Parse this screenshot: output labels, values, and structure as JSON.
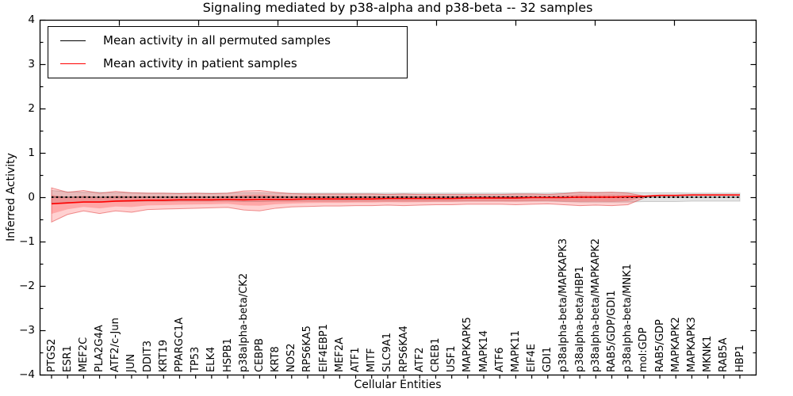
{
  "figure": {
    "title": "Signaling mediated by p38-alpha and p38-beta -- 32 samples",
    "xlabel": "Cellular Entities",
    "ylabel": "Inferred Activity"
  },
  "legend": {
    "entries": [
      {
        "label": "Mean activity in all permuted samples",
        "color": "#000000"
      },
      {
        "label": "Mean activity in patient samples",
        "color": "#ff0000"
      }
    ]
  },
  "chart_data": {
    "type": "line",
    "title": "Signaling mediated by p38-alpha and p38-beta -- 32 samples",
    "xlabel": "Cellular Entities",
    "ylabel": "Inferred Activity",
    "ylim": [
      -4,
      4
    ],
    "grid": false,
    "legend_position": "upper left",
    "x_tick_label_rotation": 90,
    "y_tick_values": [
      4,
      3,
      2,
      1,
      0,
      -1,
      -2,
      -3,
      -4
    ],
    "y_tick_labels": [
      "4",
      "3",
      "2",
      "1",
      "0",
      "−1",
      "−2",
      "−3",
      "−4"
    ],
    "categories": [
      "PTGS2",
      "ESR1",
      "MEF2C",
      "PLA2G4A",
      "ATF2/c-Jun",
      "JUN",
      "DDIT3",
      "KRT19",
      "PPARGC1A",
      "TP53",
      "ELK4",
      "HSPB1",
      "p38alpha-beta/CK2",
      "CEBPB",
      "KRT8",
      "NOS2",
      "RPS6KA5",
      "EIF4EBP1",
      "MEF2A",
      "ATF1",
      "MITF",
      "SLC9A1",
      "RPS6KA4",
      "ATF2",
      "CREB1",
      "USF1",
      "MAPKAPK5",
      "MAPK14",
      "ATF6",
      "MAPK11",
      "EIF4E",
      "GDI1",
      "p38alpha-beta/MAPKAPK3",
      "p38alpha-beta/HBP1",
      "p38alpha-beta/MAPKAPK2",
      "RAB5/GDP/GDI1",
      "p38alpha-beta/MNK1",
      "mol:GDP",
      "RAB5/GDP",
      "MAPKAPK2",
      "MAPKAPK3",
      "MKNK1",
      "RAB5A",
      "HBP1"
    ],
    "series": [
      {
        "name": "Mean activity in all permuted samples",
        "color": "#000000",
        "line_style": "dashed",
        "values": [
          0.01,
          0.01,
          0.01,
          0.01,
          0.01,
          0.01,
          0.01,
          0.01,
          0.01,
          0.01,
          0.01,
          0.01,
          0.01,
          0.01,
          0.01,
          0.01,
          0.01,
          0.01,
          0.01,
          0.01,
          0.01,
          0.01,
          0.01,
          0.01,
          0.01,
          0.01,
          0.01,
          0.01,
          0.01,
          0.01,
          0.01,
          0.01,
          0.01,
          0.01,
          0.01,
          0.01,
          0.01,
          0.01,
          0.01,
          0.01,
          0.01,
          0.01,
          0.01,
          0.01
        ],
        "band_upper": [
          0.16,
          0.13,
          0.12,
          0.12,
          0.11,
          0.11,
          0.1,
          0.1,
          0.1,
          0.1,
          0.1,
          0.1,
          0.11,
          0.11,
          0.1,
          0.1,
          0.1,
          0.1,
          0.1,
          0.1,
          0.1,
          0.1,
          0.1,
          0.1,
          0.1,
          0.1,
          0.1,
          0.1,
          0.1,
          0.1,
          0.1,
          0.1,
          0.11,
          0.12,
          0.12,
          0.12,
          0.12,
          0.11,
          0.11,
          0.11,
          0.1,
          0.1,
          0.1,
          0.1
        ],
        "band_lower": [
          -0.13,
          -0.11,
          -0.1,
          -0.1,
          -0.09,
          -0.09,
          -0.08,
          -0.08,
          -0.08,
          -0.08,
          -0.08,
          -0.08,
          -0.09,
          -0.09,
          -0.08,
          -0.08,
          -0.08,
          -0.08,
          -0.08,
          -0.08,
          -0.08,
          -0.08,
          -0.08,
          -0.08,
          -0.08,
          -0.08,
          -0.08,
          -0.08,
          -0.08,
          -0.08,
          -0.08,
          -0.08,
          -0.09,
          -0.1,
          -0.1,
          -0.1,
          -0.1,
          -0.09,
          -0.09,
          -0.09,
          -0.08,
          -0.08,
          -0.08,
          -0.08
        ],
        "band_end_index": 43
      },
      {
        "name": "Mean activity in patient samples",
        "color": "#ff0000",
        "line_style": "solid",
        "values": [
          -0.14,
          -0.12,
          -0.1,
          -0.1,
          -0.08,
          -0.07,
          -0.06,
          -0.06,
          -0.05,
          -0.05,
          -0.05,
          -0.04,
          -0.05,
          -0.04,
          -0.04,
          -0.04,
          -0.03,
          -0.03,
          -0.03,
          -0.03,
          -0.03,
          -0.02,
          -0.02,
          -0.02,
          -0.02,
          -0.02,
          -0.01,
          -0.01,
          -0.01,
          -0.01,
          0.0,
          0.0,
          0.0,
          0.01,
          0.01,
          0.01,
          0.02,
          0.03,
          0.05,
          0.05,
          0.06,
          0.06,
          0.06,
          0.06
        ],
        "band_upper": [
          0.22,
          0.12,
          0.16,
          0.1,
          0.14,
          0.11,
          0.1,
          0.1,
          0.09,
          0.1,
          0.09,
          0.1,
          0.15,
          0.16,
          0.12,
          0.09,
          0.08,
          0.08,
          0.08,
          0.08,
          0.08,
          0.07,
          0.08,
          0.07,
          0.07,
          0.07,
          0.07,
          0.07,
          0.07,
          0.08,
          0.08,
          0.07,
          0.09,
          0.12,
          0.11,
          0.12,
          0.1,
          0.04,
          0.05,
          0.05,
          0.06,
          0.06,
          0.06,
          0.06
        ],
        "band_lower": [
          -0.55,
          -0.38,
          -0.3,
          -0.36,
          -0.3,
          -0.33,
          -0.27,
          -0.26,
          -0.25,
          -0.24,
          -0.23,
          -0.22,
          -0.28,
          -0.3,
          -0.24,
          -0.21,
          -0.2,
          -0.19,
          -0.19,
          -0.18,
          -0.18,
          -0.17,
          -0.18,
          -0.17,
          -0.16,
          -0.16,
          -0.15,
          -0.15,
          -0.15,
          -0.16,
          -0.15,
          -0.14,
          -0.16,
          -0.18,
          -0.17,
          -0.18,
          -0.16,
          -0.01,
          0.05,
          0.05,
          0.06,
          0.06,
          0.06,
          0.06
        ],
        "band_end_index": 37
      }
    ]
  }
}
